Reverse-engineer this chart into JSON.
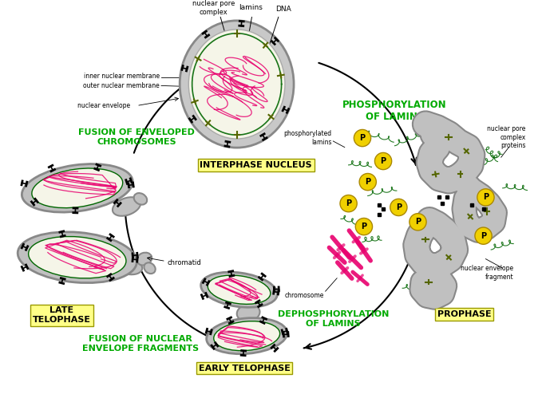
{
  "background_color": "#ffffff",
  "fig_width": 6.84,
  "fig_height": 4.94,
  "dpi": 100,
  "labels": {
    "interphase": "INTERPHASE NUCLEUS",
    "prophase": "PROPHASE",
    "early_telophase": "EARLY TELOPHASE",
    "late_telophase": "LATE\nTELOPHASE",
    "fusion_chromosomes": "FUSION OF ENVELOPED\nCHROMOSOMES",
    "fusion_envelope": "FUSION OF NUCLEAR\nENVELOPE FRAGMENTS",
    "phosphorylation": "PHOSPHORYLATION\nOF LAMINS",
    "dephosphorylation": "DEPHOSPHORYLATION\nOF LAMINS",
    "nuclear_pore": "nuclear pore\ncomplex",
    "lamins": "lamins",
    "dna": "DNA",
    "inner_nuclear": "inner nuclear membrane",
    "outer_nuclear": "outer nuclear membrane",
    "nuclear_envelope": "nuclear envelope",
    "phosphorylated_lamins": "phosphorylated\nlamins",
    "nuclear_pore_proteins": "nuclear pore\ncomplex\nproteins",
    "nuclear_envelope_fragment": "nuclear envelope\nfragment",
    "chromosome": "chromosome",
    "chromatid": "chromatid"
  },
  "green": "#00aa00",
  "black": "#000000",
  "dna_color": "#e8006e",
  "chrom_color": "#e8006e",
  "envelope_gray": "#c0c0c0",
  "envelope_edge": "#888888",
  "phospho_yellow": "#f0d000",
  "lamin_green": "#006600",
  "nucleus_inner_bg": "#f5f5e8",
  "nucleus_outer": "#c8c8c8"
}
